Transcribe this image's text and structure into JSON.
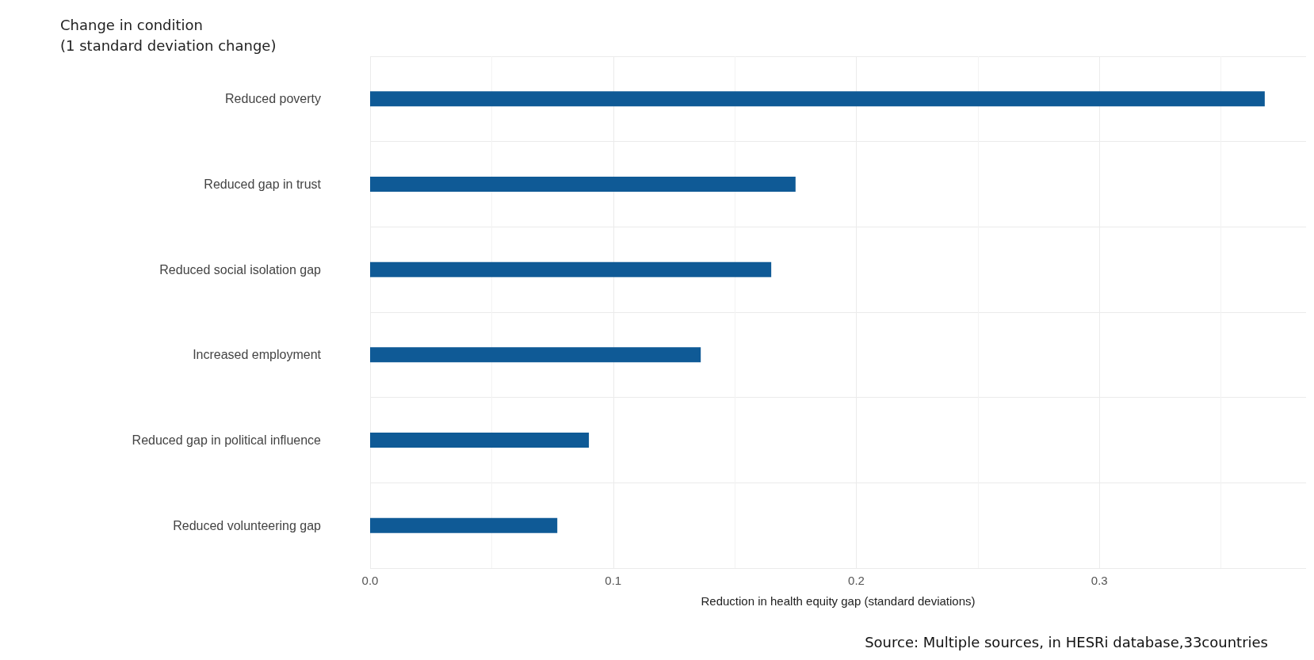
{
  "chart_data": {
    "type": "bar",
    "orientation": "horizontal",
    "ylabel": "Change in condition\n(1 standard deviation change)",
    "xlabel": "Reduction in health equity gap (standard deviations)",
    "categories": [
      "Reduced poverty",
      "Reduced gap in trust",
      "Reduced social isolation gap",
      "Increased employment",
      "Reduced gap in political influence",
      "Reduced volunteering gap"
    ],
    "values": [
      0.368,
      0.175,
      0.165,
      0.136,
      0.09,
      0.077
    ],
    "color": "#0f5a96",
    "xlim": [
      0,
      0.385
    ],
    "xticks": [
      {
        "value": 0,
        "label": "0.0"
      },
      0.1,
      0.2,
      0.3
    ],
    "grid": true,
    "annotations": [
      "Source: Multiple sources, in HESRi database,33countries"
    ]
  }
}
